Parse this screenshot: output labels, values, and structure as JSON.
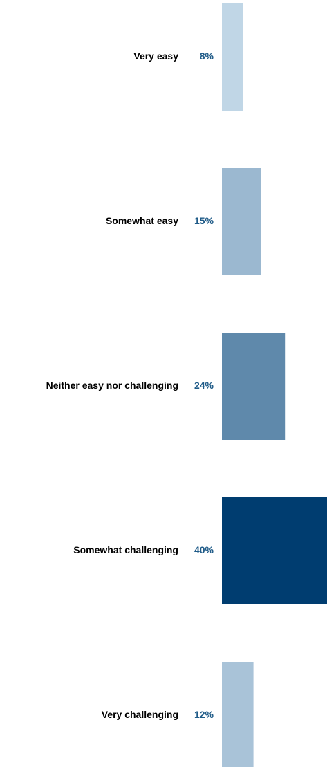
{
  "chart_data": {
    "type": "bar",
    "orientation": "horizontal",
    "categories": [
      "Very easy",
      "Somewhat easy",
      "Neither easy nor challenging",
      "Somewhat challenging",
      "Very challenging"
    ],
    "values": [
      8,
      15,
      24,
      40,
      12
    ],
    "value_labels": [
      "8%",
      "15%",
      "24%",
      "40%",
      "12%"
    ],
    "unit": "%",
    "xlim": [
      0,
      40
    ],
    "grid": false,
    "legend": "none",
    "colors": [
      "#c0d6e6",
      "#9bb8d0",
      "#5f89ab",
      "#003d70",
      "#a9c3d8"
    ],
    "value_label_color": "#1f5b88"
  }
}
